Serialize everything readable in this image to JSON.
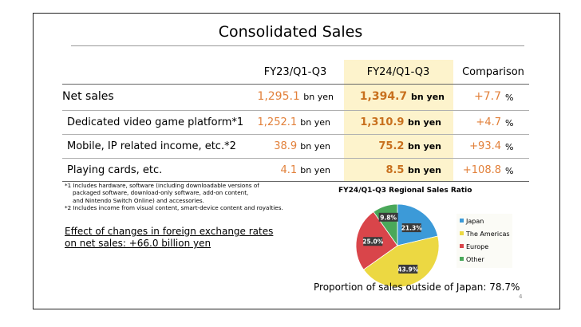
{
  "slide": {
    "title": "Consolidated Sales",
    "page_number": "4"
  },
  "table": {
    "headers": [
      "FY23/Q1-Q3",
      "FY24/Q1-Q3",
      "Comparison"
    ],
    "unit": "bn yen",
    "percent": "%",
    "rows": [
      {
        "label": "Net sales",
        "fy23": "1,295.1",
        "fy24": "1,394.7",
        "comparison": "+7.7"
      },
      {
        "label": "Dedicated video game platform*1",
        "fy23": "1,252.1",
        "fy24": "1,310.9",
        "comparison": "+4.7"
      },
      {
        "label": "Mobile, IP related income, etc.*2",
        "fy23": "38.9",
        "fy24": "75.2",
        "comparison": "+93.4"
      },
      {
        "label": "Playing cards, etc.",
        "fy23": "4.1",
        "fy24": "8.5",
        "comparison": "+108.8"
      }
    ]
  },
  "notes": [
    "*1 Includes hardware, software (including downloadable versions of",
    "packaged software, download-only software, add-on content,",
    "and Nintendo Switch Online) and accessories.",
    "*2 Includes income from visual content, smart-device content and royalties."
  ],
  "fx_effect": {
    "line1": "Effect of changes in foreign exchange rates",
    "line2": "on net sales: +66.0 billion yen"
  },
  "chart_data": {
    "type": "pie",
    "title": "FY24/Q1-Q3 Regional Sales Ratio",
    "slices": [
      {
        "name": "Japan",
        "value": 21.3,
        "label": "21.3%",
        "color": "#3c9ad8"
      },
      {
        "name": "The Americas",
        "value": 43.9,
        "label": "43.9%",
        "color": "#ecd842"
      },
      {
        "name": "Europe",
        "value": 25.0,
        "label": "25.0%",
        "color": "#d9454a"
      },
      {
        "name": "Other",
        "value": 9.8,
        "label": "9.8%",
        "color": "#4aa85a"
      }
    ],
    "legend_position": "right"
  },
  "proportion_text": "Proportion of sales outside of Japan: 78.7%"
}
